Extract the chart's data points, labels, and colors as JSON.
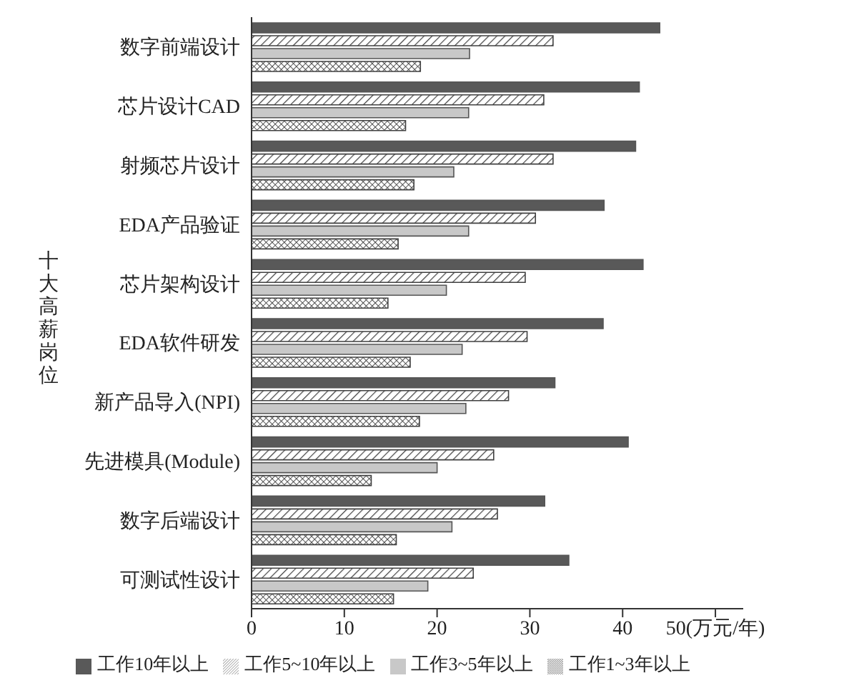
{
  "chart_data": {
    "type": "bar",
    "orientation": "horizontal",
    "ylabel": "十大高薪岗位",
    "categories": [
      "数字前端设计",
      "芯片设计CAD",
      "射频芯片设计",
      "EDA产品验证",
      "芯片架构设计",
      "EDA软件研发",
      "新产品导入(NPI)",
      "先进模具(Module)",
      "数字后端设计",
      "可测试性设计"
    ],
    "series": [
      {
        "name": "工作10年以上",
        "color": "#595959",
        "values": [
          44.0,
          41.8,
          41.4,
          38.0,
          42.2,
          37.9,
          32.7,
          40.6,
          31.6,
          34.2
        ]
      },
      {
        "name": "工作5~10年以上",
        "color": "#404040",
        "values": [
          32.5,
          31.5,
          32.5,
          30.6,
          29.5,
          29.7,
          27.7,
          26.1,
          26.5,
          23.9
        ]
      },
      {
        "name": "工作3~5年以上",
        "color": "#c8c8c8",
        "values": [
          23.5,
          23.4,
          21.8,
          23.4,
          21.0,
          22.7,
          23.1,
          20.0,
          21.6,
          19.0
        ]
      },
      {
        "name": "工作1~3年以上",
        "color": "#404040",
        "values": [
          18.2,
          16.6,
          17.5,
          15.8,
          14.7,
          17.1,
          18.1,
          12.9,
          15.6,
          15.3
        ]
      }
    ],
    "xlim": [
      0,
      53
    ],
    "xticks": [
      0,
      10,
      20,
      30,
      40,
      {
        "value": 50,
        "label": "50(万元/年)"
      }
    ],
    "grid": false,
    "legend": "bottom"
  }
}
